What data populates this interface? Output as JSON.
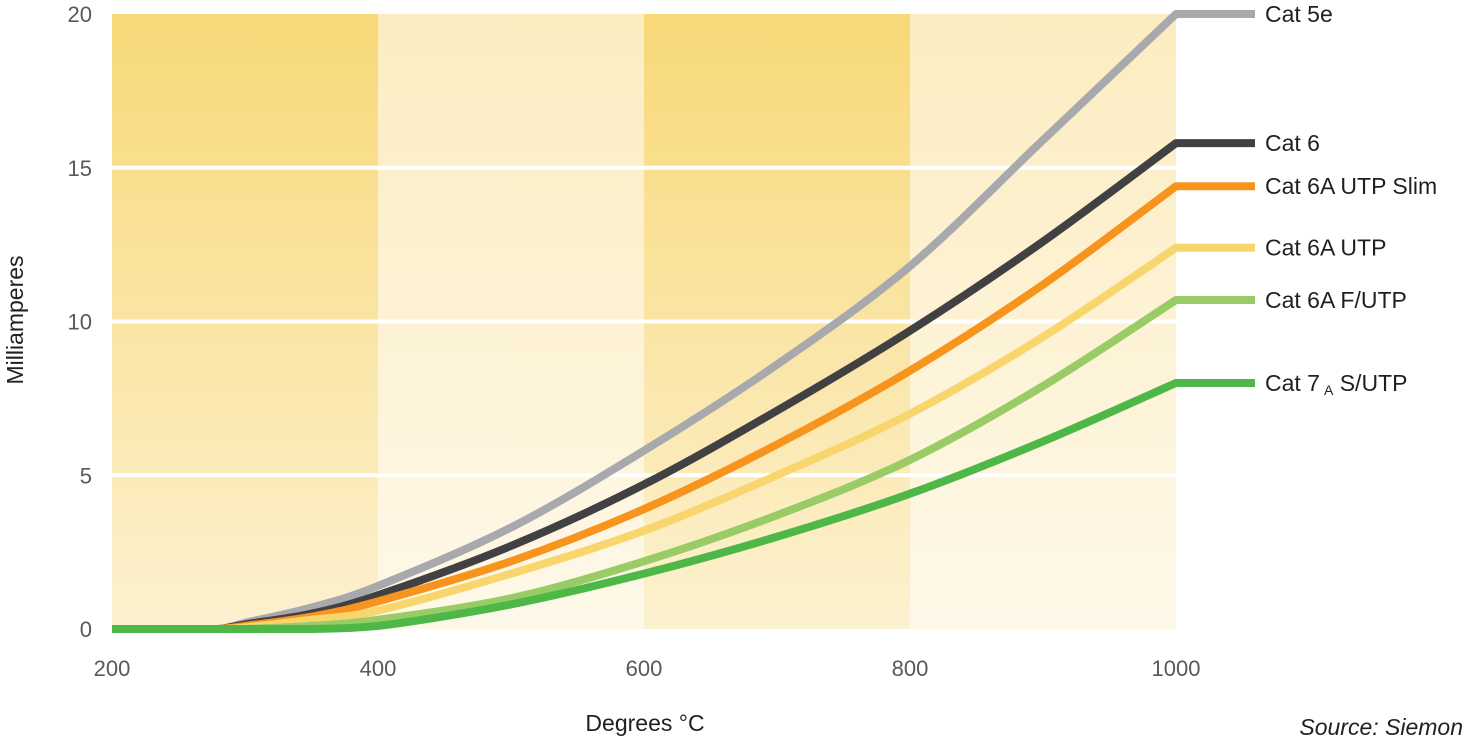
{
  "chart_data": {
    "type": "line",
    "xlabel": "Degrees °C",
    "ylabel": "Milliamperes",
    "xlim": [
      200,
      1000
    ],
    "ylim": [
      0,
      20
    ],
    "x_ticks": [
      200,
      400,
      600,
      800,
      1000
    ],
    "y_ticks": [
      0,
      5,
      10,
      15,
      20
    ],
    "grid": "horizontal",
    "background_bands": [
      "#f8d878",
      "#fcecc0",
      "#f8d878",
      "#fcecc0"
    ],
    "legend_placement": "right, at line ends",
    "source": "Source: Siemon",
    "x": [
      200,
      250,
      280,
      300,
      350,
      400,
      500,
      600,
      700,
      800,
      900,
      1000
    ],
    "series": [
      {
        "name": "Cat 5e",
        "sub": "",
        "name_after": "",
        "color": "#a7a9ac",
        "values": [
          0,
          0,
          0,
          0.2,
          0.7,
          1.4,
          3.3,
          5.8,
          8.6,
          11.8,
          15.9,
          20.0
        ]
      },
      {
        "name": "Cat 6",
        "sub": "",
        "name_after": "",
        "color": "#414042",
        "values": [
          0,
          0,
          0,
          0.15,
          0.5,
          1.1,
          2.7,
          4.7,
          7.1,
          9.7,
          12.6,
          15.8
        ]
      },
      {
        "name": "Cat 6A UTP Slim",
        "sub": "",
        "name_after": "",
        "color": "#f7941d",
        "values": [
          0,
          0,
          0,
          0.1,
          0.4,
          0.9,
          2.2,
          3.9,
          6.0,
          8.4,
          11.2,
          14.4
        ]
      },
      {
        "name": "Cat 6A UTP",
        "sub": "",
        "name_after": "",
        "color": "#f9d56e",
        "values": [
          0,
          0,
          0,
          0.05,
          0.3,
          0.6,
          1.8,
          3.2,
          5.0,
          7.0,
          9.5,
          12.4
        ]
      },
      {
        "name": "Cat 6A F/UTP",
        "sub": "",
        "name_after": "",
        "color": "#99cc66",
        "values": [
          0,
          0,
          0,
          0,
          0.1,
          0.3,
          1.0,
          2.2,
          3.7,
          5.5,
          7.9,
          10.7
        ]
      },
      {
        "name": "Cat 7",
        "sub": "A",
        "name_after": " S/UTP",
        "color": "#4db848",
        "values": [
          0,
          0,
          0,
          0,
          0,
          0.1,
          0.8,
          1.8,
          3.0,
          4.4,
          6.1,
          8.0
        ]
      }
    ]
  }
}
